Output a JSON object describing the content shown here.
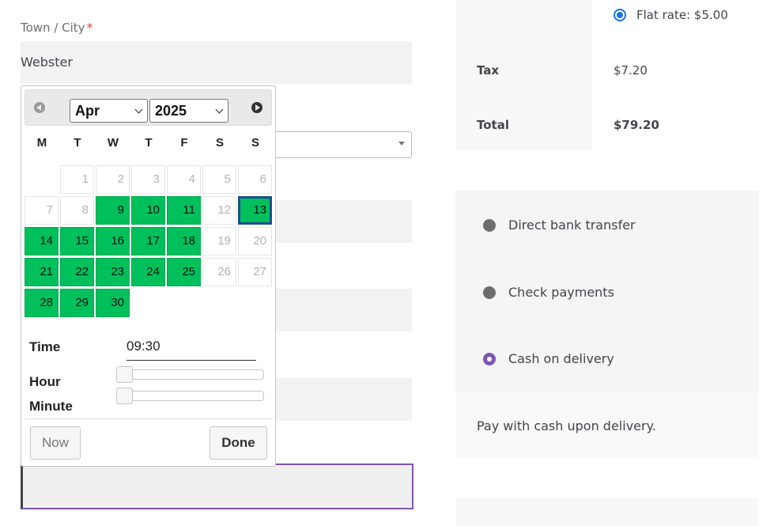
{
  "billing": {
    "city_label": "Town / City",
    "required_mark": "*",
    "city_value": "Webster"
  },
  "datepicker": {
    "month": "Apr",
    "year": "2025",
    "weekdays": [
      "M",
      "T",
      "W",
      "T",
      "F",
      "S",
      "S"
    ],
    "weeks": [
      [
        null,
        1,
        2,
        3,
        4,
        5,
        6
      ],
      [
        7,
        8,
        9,
        10,
        11,
        12,
        13
      ],
      [
        14,
        15,
        16,
        17,
        18,
        19,
        20
      ],
      [
        21,
        22,
        23,
        24,
        25,
        26,
        27
      ],
      [
        28,
        29,
        30,
        null,
        null,
        null,
        null
      ]
    ],
    "available_days": [
      9,
      10,
      11,
      13,
      14,
      15,
      16,
      17,
      18,
      21,
      22,
      23,
      24,
      25,
      28,
      29,
      30
    ],
    "selected_day": 13,
    "available_color": "#00c05c",
    "selected_border_color": "#1d4e8f",
    "time_label": "Time",
    "time_value": "09:30",
    "hour_label": "Hour",
    "minute_label": "Minute",
    "hour_slider_fraction": 0,
    "minute_slider_fraction": 0,
    "now_label": "Now",
    "done_label": "Done"
  },
  "order_totals": {
    "shipping_option": "Flat rate: $5.00",
    "tax_label": "Tax",
    "tax_value": "$7.20",
    "total_label": "Total",
    "total_value": "$79.20"
  },
  "payment": {
    "methods": [
      {
        "label": "Direct bank transfer",
        "checked": false
      },
      {
        "label": "Check payments",
        "checked": false
      },
      {
        "label": "Cash on delivery",
        "checked": true
      }
    ],
    "accent_color": "#7f54b3",
    "description": "Pay with cash upon delivery."
  }
}
